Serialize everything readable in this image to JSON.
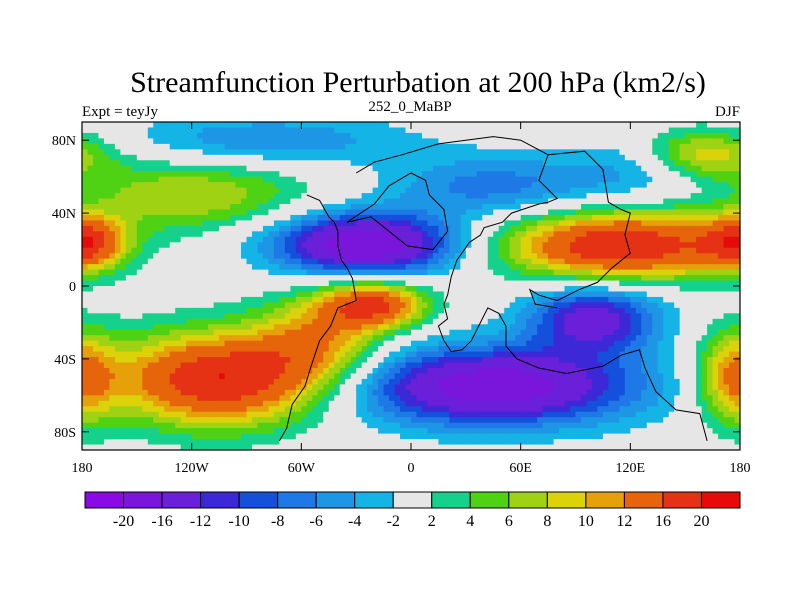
{
  "chart_data": {
    "type": "heatmap",
    "title": "Streamfunction Perturbation at 200 hPa (km2/s)",
    "left_string": "Expt = teyJy",
    "center_string": "252_0_MaBP",
    "right_string": "DJF",
    "x_range": [
      -180,
      180
    ],
    "y_range": [
      -90,
      90
    ],
    "x_ticks": [
      {
        "value": -180,
        "label": "180"
      },
      {
        "value": -120,
        "label": "120W"
      },
      {
        "value": -60,
        "label": "60W"
      },
      {
        "value": 0,
        "label": "0"
      },
      {
        "value": 60,
        "label": "60E"
      },
      {
        "value": 120,
        "label": "120E"
      },
      {
        "value": 180,
        "label": "180"
      }
    ],
    "y_ticks": [
      {
        "value": 80,
        "label": "80N"
      },
      {
        "value": 40,
        "label": "40N"
      },
      {
        "value": 0,
        "label": "0"
      },
      {
        "value": -40,
        "label": "40S"
      },
      {
        "value": -80,
        "label": "80S"
      }
    ],
    "colorbar": {
      "levels": [
        -20,
        -16,
        -12,
        -10,
        -8,
        -6,
        -4,
        -2,
        2,
        4,
        6,
        8,
        10,
        12,
        16,
        20
      ],
      "labels": [
        "-20",
        "-16",
        "-12",
        "-10",
        "-8",
        "-6",
        "-4",
        "-2",
        "2",
        "4",
        "6",
        "8",
        "10",
        "12",
        "16",
        "20"
      ],
      "colors": [
        "#8a0ae6",
        "#7a16dc",
        "#6a1fd8",
        "#3c28d6",
        "#1450dc",
        "#1e78e6",
        "#1e96e6",
        "#14b4e6",
        "#e6e6e6",
        "#14d28c",
        "#50d214",
        "#a0d214",
        "#dcd20a",
        "#e6a00a",
        "#e6640a",
        "#e63214",
        "#e60a0a"
      ]
    },
    "field_centers": [
      {
        "lon": -105,
        "lat": -51,
        "value": 20,
        "spread_lon": 40,
        "spread_lat": 18
      },
      {
        "lon": -20,
        "lat": -10,
        "value": 16,
        "spread_lon": 20,
        "spread_lat": 9
      },
      {
        "lon": -50,
        "lat": -30,
        "value": 10,
        "spread_lon": 25,
        "spread_lat": 18
      },
      {
        "lon": 115,
        "lat": 22,
        "value": 20,
        "spread_lon": 45,
        "spread_lat": 13
      },
      {
        "lon": 178,
        "lat": -50,
        "value": 12,
        "spread_lon": 15,
        "spread_lat": 18
      },
      {
        "lon": -178,
        "lat": 24,
        "value": 14,
        "spread_lon": 15,
        "spread_lat": 10
      },
      {
        "lon": -120,
        "lat": 50,
        "value": 8,
        "spread_lon": 45,
        "spread_lat": 14
      },
      {
        "lon": 160,
        "lat": 72,
        "value": 11,
        "spread_lon": 25,
        "spread_lat": 10
      },
      {
        "lon": -25,
        "lat": 23,
        "value": -20,
        "spread_lon": 35,
        "spread_lat": 12
      },
      {
        "lon": 45,
        "lat": -55,
        "value": -19,
        "spread_lon": 55,
        "spread_lat": 15
      },
      {
        "lon": 100,
        "lat": -18,
        "value": -14,
        "spread_lon": 25,
        "spread_lat": 13
      },
      {
        "lon": -80,
        "lat": 80,
        "value": -6,
        "spread_lon": 55,
        "spread_lat": 10
      },
      {
        "lon": 45,
        "lat": 55,
        "value": -7,
        "spread_lon": 40,
        "spread_lat": 12
      },
      {
        "lon": 130,
        "lat": 65,
        "value": -5,
        "spread_lon": 30,
        "spread_lat": 12
      }
    ]
  }
}
